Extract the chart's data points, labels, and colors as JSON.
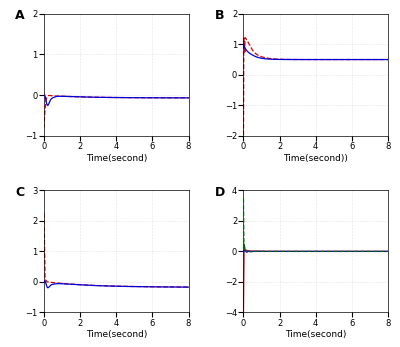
{
  "subplot_labels": [
    "A",
    "B",
    "C",
    "D"
  ],
  "xlabel_A": "Time(second)",
  "xlabel_B": "Time(second))",
  "xlabel_C": "Time(second)",
  "xlabel_D": "Time(second)",
  "ylim_A": [
    -1,
    2
  ],
  "ylim_B": [
    -2,
    2
  ],
  "ylim_C": [
    -1,
    3
  ],
  "ylim_D": [
    -4,
    4
  ],
  "xlim": [
    0,
    8
  ],
  "yticks_A": [
    -1,
    0,
    1,
    2
  ],
  "yticks_B": [
    -2,
    -1,
    0,
    1,
    2
  ],
  "yticks_C": [
    -1,
    0,
    1,
    2,
    3
  ],
  "yticks_D": [
    -4,
    -2,
    0,
    2,
    4
  ],
  "xticks": [
    0,
    2,
    4,
    6,
    8
  ],
  "bg_color": "#ffffff",
  "line_blue": "#0000dd",
  "line_red": "#dd0000",
  "line_green": "#006600"
}
